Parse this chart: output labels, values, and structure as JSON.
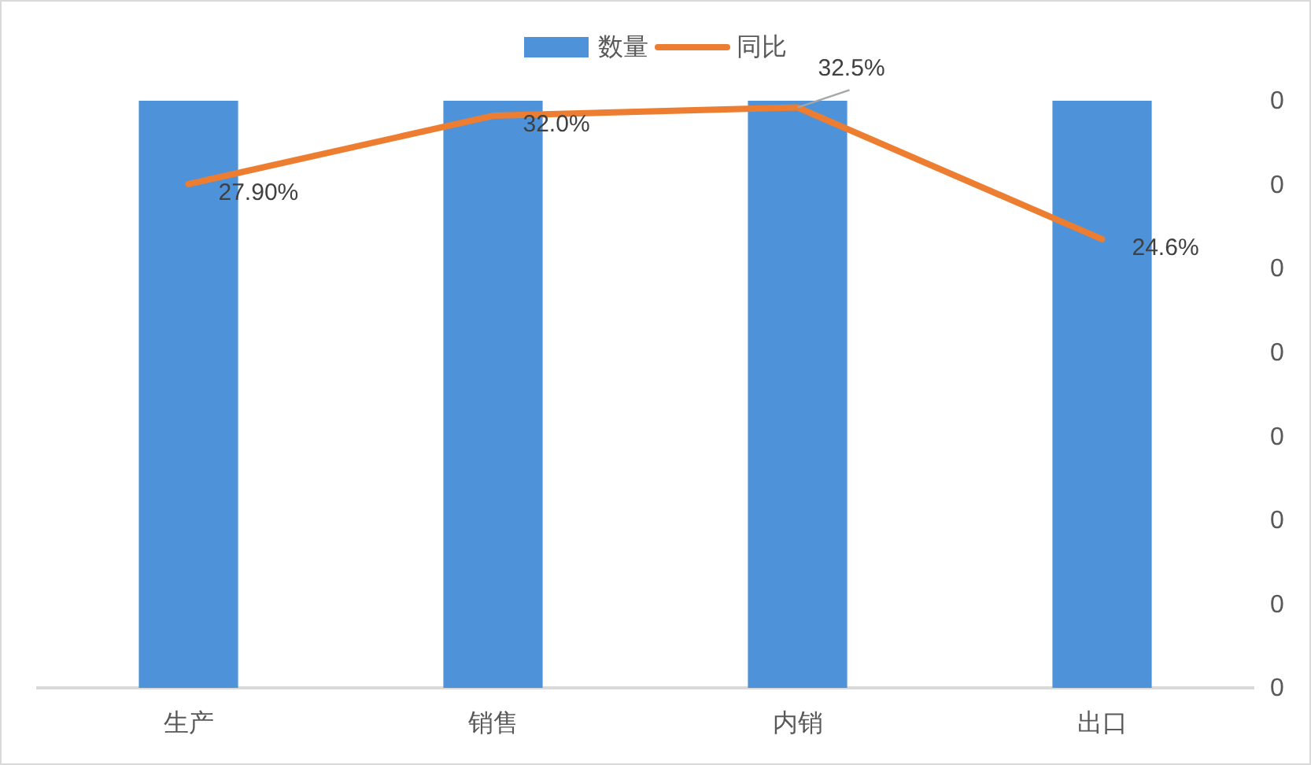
{
  "chart_data": {
    "type": "bar",
    "categories": [
      "生产",
      "销售",
      "内销",
      "出口"
    ],
    "series": [
      {
        "name": "数量",
        "color": "#4e93d9",
        "values": [
          0.35,
          0.35,
          0.35,
          0.35
        ],
        "axis": "y2"
      },
      {
        "name": "同比",
        "type": "line",
        "color": "#ed7d31",
        "values": [
          27.9,
          32.0,
          32.5,
          24.6
        ],
        "value_labels": [
          "27.90%",
          "32.0%",
          "32.5%",
          "24.6%"
        ]
      }
    ],
    "ylim": [
      -2.3,
      32.9
    ],
    "y2lim": [
      0,
      0.35
    ],
    "y2ticks": [
      {
        "value": 0,
        "label": "0"
      },
      {
        "value": 0.05,
        "label": "0"
      },
      {
        "value": 0.1,
        "label": "0"
      },
      {
        "value": 0.15,
        "label": "0"
      },
      {
        "value": 0.2,
        "label": "0"
      },
      {
        "value": 0.25,
        "label": "0"
      },
      {
        "value": 0.3,
        "label": "0"
      },
      {
        "value": 0.35,
        "label": "0"
      }
    ],
    "legend": "top"
  }
}
